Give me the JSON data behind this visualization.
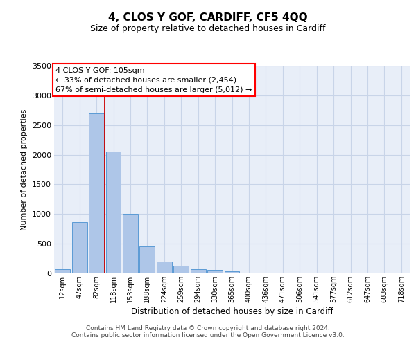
{
  "title": "4, CLOS Y GOF, CARDIFF, CF5 4QQ",
  "subtitle": "Size of property relative to detached houses in Cardiff",
  "xlabel": "Distribution of detached houses by size in Cardiff",
  "ylabel": "Number of detached properties",
  "categories": [
    "12sqm",
    "47sqm",
    "82sqm",
    "118sqm",
    "153sqm",
    "188sqm",
    "224sqm",
    "259sqm",
    "294sqm",
    "330sqm",
    "365sqm",
    "400sqm",
    "436sqm",
    "471sqm",
    "506sqm",
    "541sqm",
    "577sqm",
    "612sqm",
    "647sqm",
    "683sqm",
    "718sqm"
  ],
  "values": [
    70,
    860,
    2700,
    2050,
    1000,
    450,
    200,
    130,
    70,
    55,
    30,
    5,
    5,
    5,
    5,
    2,
    2,
    0,
    0,
    0,
    0
  ],
  "bar_color": "#aec6e8",
  "bar_edge_color": "#5b9bd5",
  "grid_color": "#c8d4e8",
  "background_color": "#e8eef8",
  "annotation_line1": "4 CLOS Y GOF: 105sqm",
  "annotation_line2": "← 33% of detached houses are smaller (2,454)",
  "annotation_line3": "67% of semi-detached houses are larger (5,012) →",
  "vline_color": "#cc0000",
  "ylim": [
    0,
    3500
  ],
  "yticks": [
    0,
    500,
    1000,
    1500,
    2000,
    2500,
    3000,
    3500
  ],
  "footer_line1": "Contains HM Land Registry data © Crown copyright and database right 2024.",
  "footer_line2": "Contains public sector information licensed under the Open Government Licence v3.0.",
  "title_fontsize": 11,
  "subtitle_fontsize": 9,
  "ylabel_fontsize": 8,
  "xlabel_fontsize": 8.5,
  "tick_fontsize": 8,
  "xtick_fontsize": 7,
  "annotation_fontsize": 8,
  "footer_fontsize": 6.5
}
